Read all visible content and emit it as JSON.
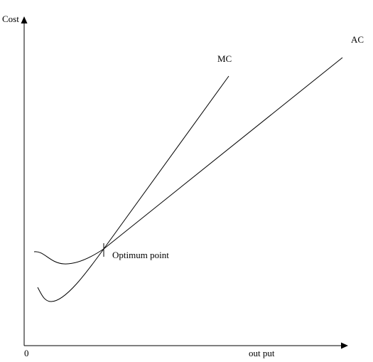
{
  "axes": {
    "y_label": "Cost",
    "x_label": "out put",
    "origin_label": "0"
  },
  "curves": {
    "mc_label": "MC",
    "ac_label": "AC"
  },
  "annotation": {
    "optimum_label": "Optimum point"
  },
  "colors": {
    "line": "#000000",
    "background": "#ffffff"
  }
}
